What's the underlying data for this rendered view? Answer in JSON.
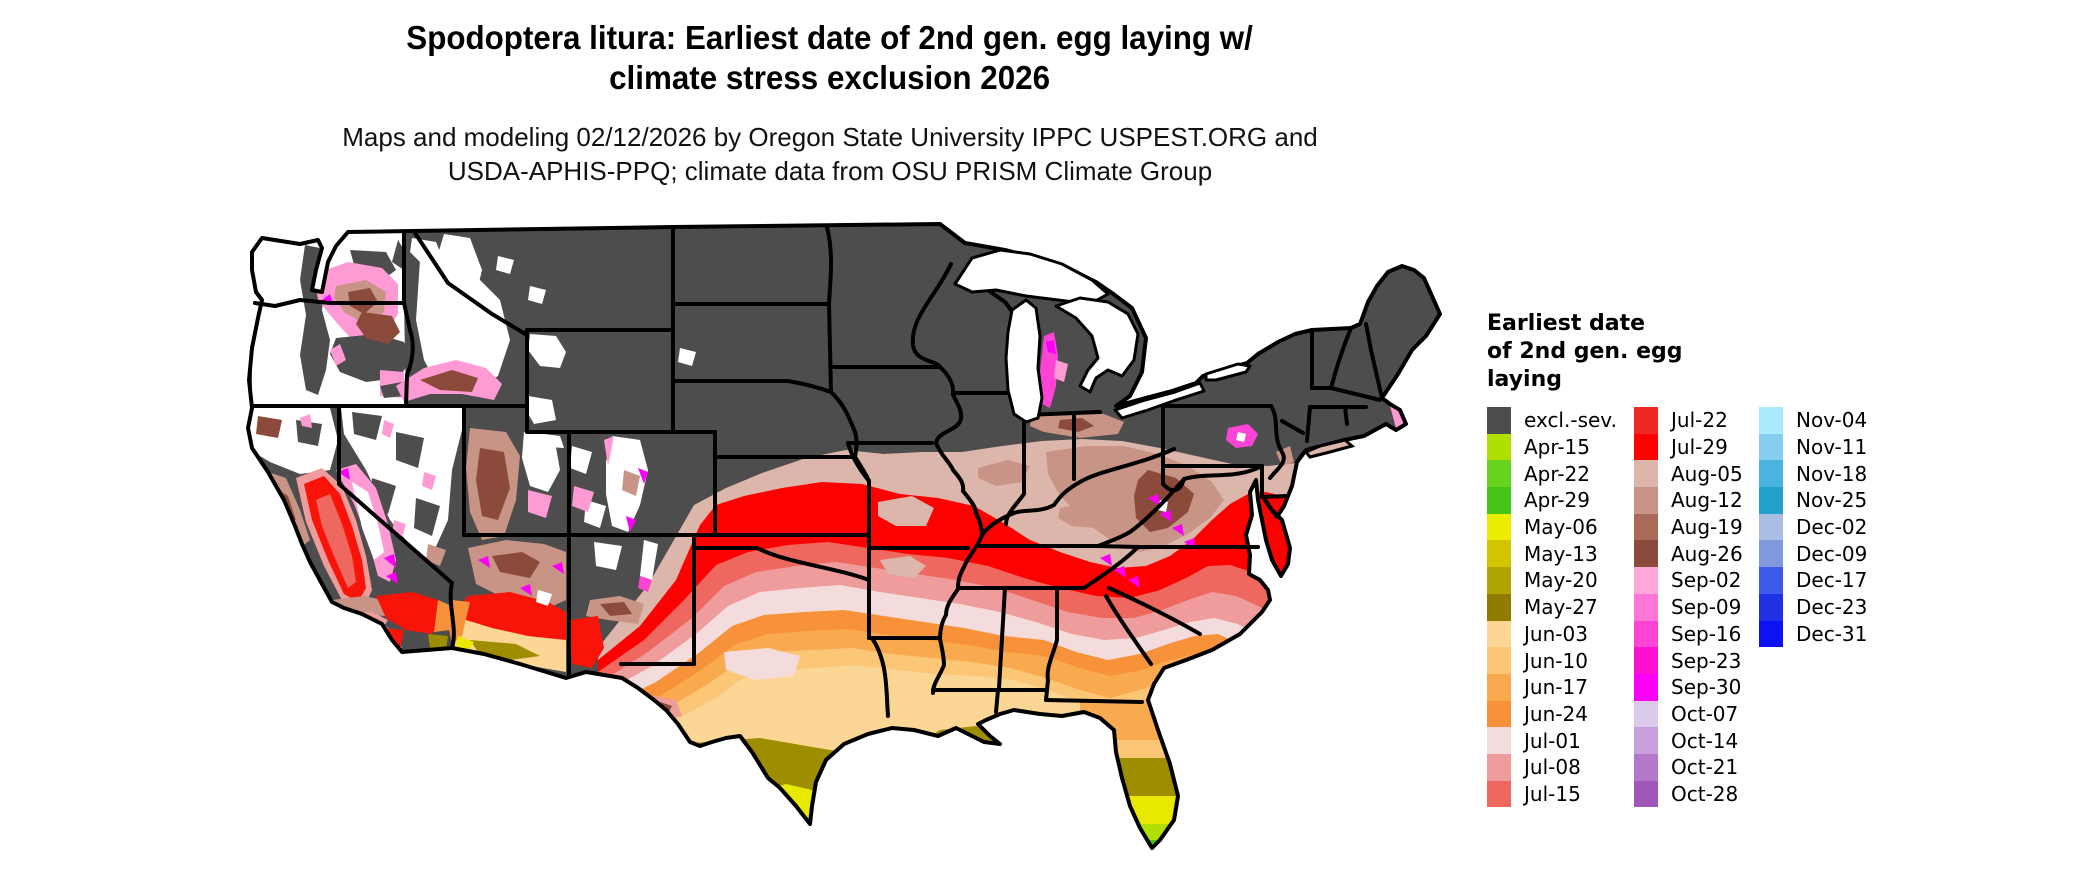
{
  "title": {
    "line1": "Spodoptera litura: Earliest date of 2nd gen. egg laying w/",
    "line2": "climate stress exclusion 2026"
  },
  "subtitle": {
    "line1": "Maps and modeling 02/12/2026 by Oregon State University IPPC USPEST.ORG and",
    "line2": "USDA-APHIS-PPQ; climate data from OSU PRISM Climate Group"
  },
  "legend": {
    "title_lines": [
      "Earliest date",
      "of 2nd gen. egg",
      "laying"
    ],
    "columns": [
      {
        "entries": [
          {
            "label": "excl.-sev.",
            "color": "#4d4d4d"
          },
          {
            "label": "Apr-15",
            "color": "#b0e000"
          },
          {
            "label": "Apr-22",
            "color": "#66d41e"
          },
          {
            "label": "Apr-29",
            "color": "#44c418"
          },
          {
            "label": "May-06",
            "color": "#ecec00"
          },
          {
            "label": "May-13",
            "color": "#d2c400"
          },
          {
            "label": "May-20",
            "color": "#b0a400"
          },
          {
            "label": "May-27",
            "color": "#907c00"
          },
          {
            "label": "Jun-03",
            "color": "#fcd695"
          },
          {
            "label": "Jun-10",
            "color": "#fcc677"
          },
          {
            "label": "Jun-17",
            "color": "#faaa4e"
          },
          {
            "label": "Jun-24",
            "color": "#f8923a"
          },
          {
            "label": "Jul-01",
            "color": "#f4dcdc"
          },
          {
            "label": "Jul-08",
            "color": "#ee9c9c"
          },
          {
            "label": "Jul-15",
            "color": "#ee6860"
          }
        ]
      },
      {
        "entries": [
          {
            "label": "Jul-22",
            "color": "#ee2822"
          },
          {
            "label": "Jul-29",
            "color": "#fd0000"
          },
          {
            "label": "Aug-05",
            "color": "#dcb6aa"
          },
          {
            "label": "Aug-12",
            "color": "#c89486"
          },
          {
            "label": "Aug-19",
            "color": "#aa6a58"
          },
          {
            "label": "Aug-26",
            "color": "#8c4a3a"
          },
          {
            "label": "Sep-02",
            "color": "#ffa8dc"
          },
          {
            "label": "Sep-09",
            "color": "#fe76d8"
          },
          {
            "label": "Sep-16",
            "color": "#fe44d4"
          },
          {
            "label": "Sep-23",
            "color": "#fe10d0"
          },
          {
            "label": "Sep-30",
            "color": "#fa00fa"
          },
          {
            "label": "Oct-07",
            "color": "#dccaea"
          },
          {
            "label": "Oct-14",
            "color": "#c89edc"
          },
          {
            "label": "Oct-21",
            "color": "#b478ca"
          },
          {
            "label": "Oct-28",
            "color": "#a056b6"
          }
        ]
      },
      {
        "entries": [
          {
            "label": "Nov-04",
            "color": "#aaeafc"
          },
          {
            "label": "Nov-11",
            "color": "#86cef0"
          },
          {
            "label": "Nov-18",
            "color": "#4ab4e0"
          },
          {
            "label": "Nov-25",
            "color": "#20a2cc"
          },
          {
            "label": "Dec-02",
            "color": "#aabee4"
          },
          {
            "label": "Dec-09",
            "color": "#8098dc"
          },
          {
            "label": "Dec-17",
            "color": "#3e5ae8"
          },
          {
            "label": "Dec-23",
            "color": "#2030e4"
          },
          {
            "label": "Dec-31",
            "color": "#0c12f2"
          }
        ]
      }
    ]
  },
  "map": {
    "description": "Continental US choropleth raster of earliest 2nd generation egg laying dates"
  }
}
